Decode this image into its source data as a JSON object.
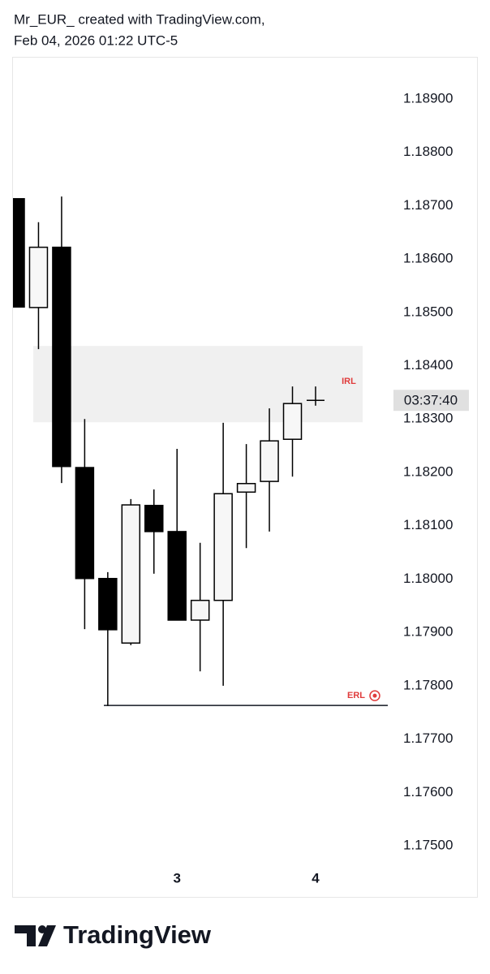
{
  "header": {
    "line1": "Mr_EUR_ created with TradingView.com,",
    "line2": "Feb 04, 2026 01:22 UTC-5"
  },
  "footer": {
    "brand": "TradingView"
  },
  "chart_data": {
    "type": "candlestick",
    "categories": [
      null,
      null,
      null,
      null,
      null,
      null,
      null,
      "3",
      null,
      null,
      null,
      null,
      null,
      "4"
    ],
    "open": [
      1.18713,
      1.18509,
      1.18622,
      1.18209,
      1.18001,
      1.1788,
      1.18138,
      1.18089,
      1.17923,
      1.1796,
      1.18163,
      1.18183,
      1.18262,
      1.18335
    ],
    "high": [
      1.18713,
      1.18669,
      1.18717,
      1.183,
      1.18013,
      1.1815,
      1.18168,
      1.18244,
      1.18068,
      1.18293,
      1.18253,
      1.1832,
      1.18361,
      1.18361
    ],
    "low": [
      1.1851,
      1.18431,
      1.1818,
      1.17906,
      1.17762,
      1.17876,
      1.1801,
      1.17923,
      1.17827,
      1.178,
      1.18058,
      1.18089,
      1.18192,
      1.18325
    ],
    "close": [
      1.1851,
      1.18622,
      1.18211,
      1.18001,
      1.17905,
      1.18139,
      1.18089,
      1.17923,
      1.1796,
      1.1816,
      1.18179,
      1.18259,
      1.18329,
      1.18335
    ],
    "up_color": "#f7f7f7",
    "down_color": "#000000",
    "ylim": [
      1.17465,
      1.18979
    ],
    "yticks": [
      {
        "value": 1.189,
        "label": "1.18900"
      },
      {
        "value": 1.188,
        "label": "1.18800"
      },
      {
        "value": 1.187,
        "label": "1.18700"
      },
      {
        "value": 1.186,
        "label": "1.18600"
      },
      {
        "value": 1.185,
        "label": "1.18500"
      },
      {
        "value": 1.184,
        "label": "1.18400"
      },
      {
        "value": 1.183,
        "label": "1.18300"
      },
      {
        "value": 1.182,
        "label": "1.18200"
      },
      {
        "value": 1.181,
        "label": "1.18100"
      },
      {
        "value": 1.18,
        "label": "1.18000"
      },
      {
        "value": 1.179,
        "label": "1.17900"
      },
      {
        "value": 1.178,
        "label": "1.17800"
      },
      {
        "value": 1.177,
        "label": "1.17700"
      },
      {
        "value": 1.176,
        "label": "1.17600"
      },
      {
        "value": 1.175,
        "label": "1.17500"
      }
    ],
    "countdown": "03:37:40",
    "zone": {
      "label": "IRL",
      "from": 1.18294,
      "to": 1.18437,
      "color": "#f0f0f0"
    },
    "level": {
      "label": "ERL",
      "value": 1.17763
    }
  }
}
